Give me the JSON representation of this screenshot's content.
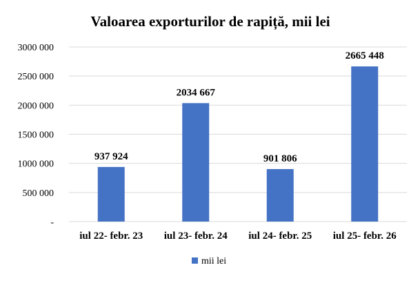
{
  "chart_data": {
    "type": "bar",
    "title": "Valoarea exporturilor de rapiță, mii lei",
    "xlabel": "",
    "ylabel": "",
    "categories": [
      "iul 22- febr. 23",
      "iul 23- febr. 24",
      "iul 24- febr. 25",
      "iul 25- febr. 26"
    ],
    "series": [
      {
        "name": "mii lei",
        "values": [
          937924,
          2034667,
          901806,
          2665448
        ],
        "labels": [
          "937 924",
          "2034 667",
          "901 806",
          "2665 448"
        ],
        "color": "#4472C4"
      }
    ],
    "ylim": [
      0,
      3000000
    ],
    "yticks": [
      0,
      500000,
      1000000,
      1500000,
      2000000,
      2500000,
      3000000
    ],
    "ytick_labels": [
      "-",
      "500 000",
      "1000 000",
      "1500 000",
      "2000 000",
      "2500 000",
      "3000 000"
    ],
    "grid": true,
    "legend": "bottom"
  }
}
